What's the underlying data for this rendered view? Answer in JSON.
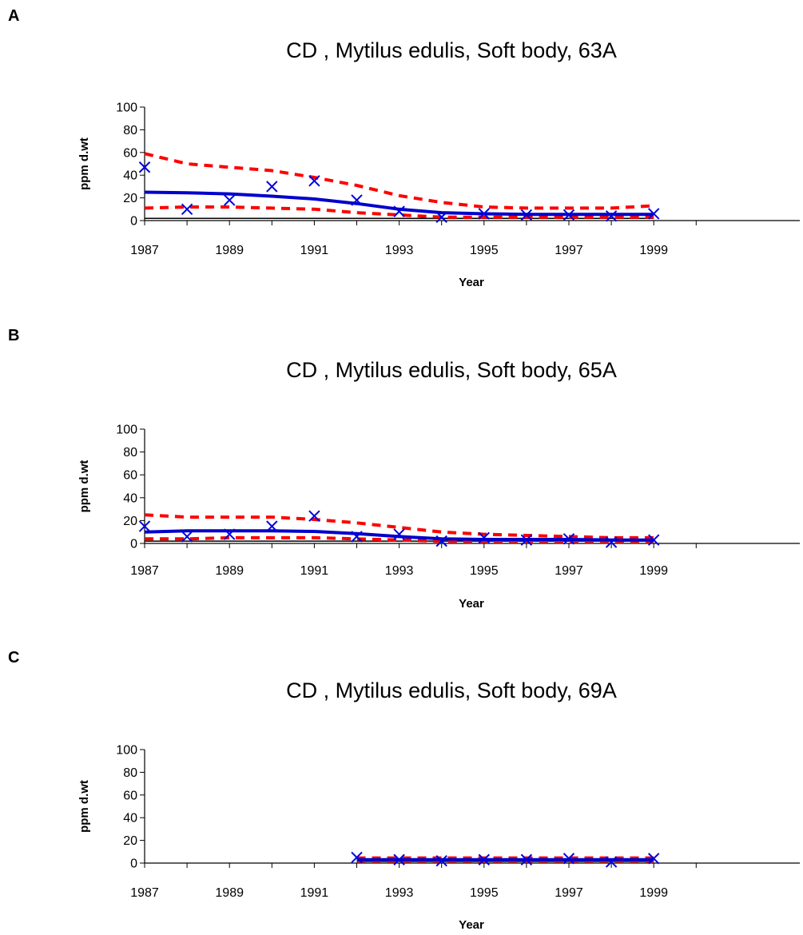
{
  "chart_data": [
    {
      "type": "line",
      "panel": "A",
      "title": "CD    , Mytilus edulis, Soft body, 63A",
      "xlabel": "Year",
      "ylabel": "ppm d.wt",
      "ylim": [
        0,
        100
      ],
      "xlim": [
        1987,
        1999
      ],
      "x_ticks": [
        "1987",
        "1989",
        "1991",
        "1993",
        "1995",
        "1997",
        "1999"
      ],
      "y_ticks": [
        "0",
        "20",
        "40",
        "60",
        "80",
        "100"
      ],
      "grid": false,
      "series": [
        {
          "style": "markers-x",
          "color": "#0000dd",
          "x": [
            1987,
            1988,
            1989,
            1990,
            1991,
            1992,
            1993,
            1994,
            1995,
            1996,
            1997,
            1998,
            1999
          ],
          "y": [
            47,
            10,
            18,
            30,
            35,
            18,
            8,
            3,
            6,
            5,
            5,
            4,
            6
          ]
        },
        {
          "style": "solid",
          "color": "#0000cc",
          "x": [
            1987,
            1988,
            1989,
            1990,
            1991,
            1992,
            1993,
            1994,
            1995,
            1996,
            1997,
            1998,
            1999
          ],
          "y": [
            25,
            24.5,
            23.5,
            21.5,
            19,
            15,
            10,
            7,
            6,
            5.5,
            5.5,
            5.5,
            5.5
          ]
        },
        {
          "style": "dashed",
          "color": "#ff0000",
          "x": [
            1987,
            1988,
            1989,
            1990,
            1991,
            1992,
            1993,
            1994,
            1995,
            1996,
            1997,
            1998,
            1999
          ],
          "y": [
            59,
            50,
            47,
            44,
            38,
            31,
            22,
            16,
            12,
            11,
            11,
            11,
            13
          ]
        },
        {
          "style": "dashed",
          "color": "#ff0000",
          "x": [
            1987,
            1988,
            1989,
            1990,
            1991,
            1992,
            1993,
            1994,
            1995,
            1996,
            1997,
            1998,
            1999
          ],
          "y": [
            11,
            12,
            12,
            11,
            10,
            7,
            5,
            3,
            3,
            3,
            3,
            3,
            3
          ]
        },
        {
          "style": "baseline",
          "color": "#000000",
          "x": [
            1987,
            1999
          ],
          "y": [
            2,
            2
          ]
        }
      ]
    },
    {
      "type": "line",
      "panel": "B",
      "title": "CD    , Mytilus edulis, Soft body, 65A",
      "xlabel": "Year",
      "ylabel": "ppm d.wt",
      "ylim": [
        0,
        100
      ],
      "xlim": [
        1987,
        1999
      ],
      "x_ticks": [
        "1987",
        "1989",
        "1991",
        "1993",
        "1995",
        "1997",
        "1999"
      ],
      "y_ticks": [
        "0",
        "20",
        "40",
        "60",
        "80",
        "100"
      ],
      "grid": false,
      "series": [
        {
          "style": "markers-x",
          "color": "#0000dd",
          "x": [
            1987,
            1988,
            1989,
            1990,
            1991,
            1992,
            1993,
            1994,
            1995,
            1996,
            1997,
            1998,
            1999
          ],
          "y": [
            15,
            6,
            8,
            15,
            24,
            6,
            8,
            2,
            5,
            3,
            4,
            1,
            3
          ]
        },
        {
          "style": "solid",
          "color": "#0000cc",
          "x": [
            1987,
            1988,
            1989,
            1990,
            1991,
            1992,
            1993,
            1994,
            1995,
            1996,
            1997,
            1998,
            1999
          ],
          "y": [
            10,
            11,
            11,
            11,
            10.5,
            8.5,
            6,
            4,
            3.5,
            3.5,
            3.5,
            3,
            3
          ]
        },
        {
          "style": "dashed",
          "color": "#ff0000",
          "x": [
            1987,
            1988,
            1989,
            1990,
            1991,
            1992,
            1993,
            1994,
            1995,
            1996,
            1997,
            1998,
            1999
          ],
          "y": [
            25,
            23,
            23,
            23,
            21,
            18,
            14,
            10,
            8,
            7,
            6,
            5,
            5
          ]
        },
        {
          "style": "dashed",
          "color": "#ff0000",
          "x": [
            1987,
            1988,
            1989,
            1990,
            1991,
            1992,
            1993,
            1994,
            1995,
            1996,
            1997,
            1998,
            1999
          ],
          "y": [
            4,
            4,
            5,
            5,
            5,
            4,
            3,
            2,
            2,
            2,
            2,
            2,
            2
          ]
        },
        {
          "style": "baseline",
          "color": "#000000",
          "x": [
            1987,
            1999
          ],
          "y": [
            2,
            2
          ]
        }
      ]
    },
    {
      "type": "line",
      "panel": "C",
      "title": "CD    , Mytilus edulis, Soft body, 69A",
      "xlabel": "Year",
      "ylabel": "ppm d.wt",
      "ylim": [
        0,
        100
      ],
      "xlim": [
        1987,
        1999
      ],
      "x_ticks": [
        "1987",
        "1989",
        "1991",
        "1993",
        "1995",
        "1997",
        "1999"
      ],
      "y_ticks": [
        "0",
        "20",
        "40",
        "60",
        "80",
        "100"
      ],
      "grid": false,
      "series": [
        {
          "style": "markers-x",
          "color": "#0000dd",
          "x": [
            1992,
            1993,
            1994,
            1995,
            1996,
            1997,
            1998,
            1999
          ],
          "y": [
            5,
            3,
            2,
            3,
            3,
            4,
            1,
            4
          ]
        },
        {
          "style": "solid",
          "color": "#0000cc",
          "x": [
            1992,
            1993,
            1994,
            1995,
            1996,
            1997,
            1998,
            1999
          ],
          "y": [
            3,
            3,
            3,
            3,
            3,
            3,
            3,
            3
          ]
        },
        {
          "style": "dashed",
          "color": "#ff0000",
          "x": [
            1992,
            1993,
            1994,
            1995,
            1996,
            1997,
            1998,
            1999
          ],
          "y": [
            4.5,
            4.5,
            4.5,
            4.5,
            4.5,
            4.5,
            4.5,
            4.5
          ]
        },
        {
          "style": "dashed",
          "color": "#ff0000",
          "x": [
            1992,
            1993,
            1994,
            1995,
            1996,
            1997,
            1998,
            1999
          ],
          "y": [
            2,
            2,
            2,
            2,
            2,
            2,
            2,
            2
          ]
        },
        {
          "style": "baseline",
          "color": "#000000",
          "x": [
            1992,
            1999
          ],
          "y": [
            1.5,
            1.5
          ]
        }
      ]
    }
  ]
}
